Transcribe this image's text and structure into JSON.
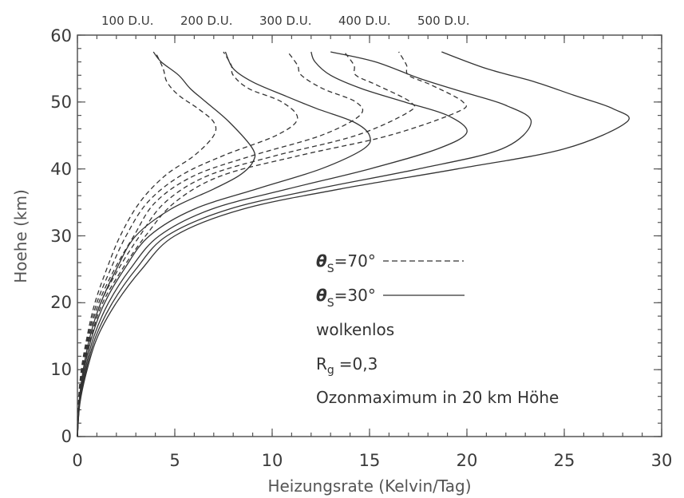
{
  "chart_data": {
    "type": "line",
    "title": "",
    "xlabel": "Heizungsrate (Kelvin/Tag)",
    "ylabel": "Hoehe (km)",
    "xlim": [
      0,
      30
    ],
    "ylim": [
      0,
      60
    ],
    "x_ticks": [
      "0",
      "5",
      "10",
      "15",
      "20",
      "25",
      "30"
    ],
    "y_ticks": [
      "0",
      "10",
      "20",
      "30",
      "40",
      "50",
      "60"
    ],
    "grid": false,
    "top_labels": [
      "100 D.U.",
      "200 D.U.",
      "300 D.U.",
      "400 D.U.",
      "500 D.U."
    ],
    "annotations": {
      "theta70_symbol": "θ",
      "theta70_sub": "S",
      "theta70_text": "=70°",
      "theta30_symbol": "θ",
      "theta30_sub": "S",
      "theta30_text": "=30°",
      "cloud": "wolkenlos",
      "rg_main": "R",
      "rg_sub": "g",
      "rg_value": "=0,3",
      "ozone": "Ozonmaximum in 20 km Höhe"
    },
    "series": [
      {
        "group": "θS=70°",
        "style": "dashed",
        "points": [
          [
            0,
            0
          ],
          [
            0.05,
            5
          ],
          [
            0.2,
            10
          ],
          [
            0.5,
            15
          ],
          [
            0.9,
            20
          ],
          [
            1.5,
            25
          ],
          [
            2.2,
            30
          ],
          [
            3.2,
            35
          ],
          [
            4.5,
            39
          ],
          [
            6.0,
            42
          ],
          [
            7.0,
            45
          ],
          [
            7.0,
            47
          ],
          [
            6.2,
            49
          ],
          [
            5.2,
            51
          ],
          [
            4.6,
            53
          ],
          [
            4.4,
            55
          ],
          [
            4.0,
            57.5
          ]
        ]
      },
      {
        "group": "θS=70°",
        "style": "dashed",
        "points": [
          [
            0,
            0
          ],
          [
            0.06,
            5
          ],
          [
            0.24,
            10
          ],
          [
            0.55,
            15
          ],
          [
            1.0,
            20
          ],
          [
            1.7,
            25
          ],
          [
            2.5,
            30
          ],
          [
            3.6,
            35
          ],
          [
            5.3,
            39
          ],
          [
            7.5,
            42
          ],
          [
            10.2,
            45
          ],
          [
            11.3,
            47.5
          ],
          [
            10.5,
            50
          ],
          [
            8.8,
            52
          ],
          [
            8.0,
            54
          ],
          [
            7.9,
            55.5
          ],
          [
            7.5,
            57.5
          ]
        ]
      },
      {
        "group": "θS=70°",
        "style": "dashed",
        "points": [
          [
            0,
            0
          ],
          [
            0.07,
            5
          ],
          [
            0.27,
            10
          ],
          [
            0.6,
            15
          ],
          [
            1.1,
            20
          ],
          [
            1.9,
            25
          ],
          [
            2.9,
            30
          ],
          [
            4.0,
            35
          ],
          [
            6.0,
            39
          ],
          [
            9.0,
            42
          ],
          [
            12.5,
            45
          ],
          [
            14.5,
            48
          ],
          [
            14.3,
            50
          ],
          [
            12.6,
            52
          ],
          [
            11.5,
            54
          ],
          [
            11.3,
            55.5
          ],
          [
            10.8,
            57.5
          ]
        ]
      },
      {
        "group": "θS=70°",
        "style": "dashed",
        "points": [
          [
            0,
            0
          ],
          [
            0.08,
            5
          ],
          [
            0.3,
            10
          ],
          [
            0.66,
            15
          ],
          [
            1.2,
            20
          ],
          [
            2.1,
            25
          ],
          [
            3.2,
            30
          ],
          [
            4.5,
            35
          ],
          [
            6.7,
            39
          ],
          [
            10.2,
            42
          ],
          [
            14.3,
            45
          ],
          [
            17.0,
            48.5
          ],
          [
            17.1,
            50
          ],
          [
            15.4,
            52.5
          ],
          [
            14.3,
            54
          ],
          [
            14.2,
            55.5
          ],
          [
            13.7,
            57.5
          ]
        ]
      },
      {
        "group": "θS=70°",
        "style": "dashed",
        "points": [
          [
            0,
            0
          ],
          [
            0.09,
            5
          ],
          [
            0.33,
            10
          ],
          [
            0.72,
            15
          ],
          [
            1.3,
            20
          ],
          [
            2.3,
            25
          ],
          [
            3.5,
            30
          ],
          [
            5.0,
            35
          ],
          [
            7.4,
            39
          ],
          [
            11.4,
            42
          ],
          [
            16.0,
            45
          ],
          [
            19.5,
            48.5
          ],
          [
            19.8,
            50
          ],
          [
            18.2,
            52.5
          ],
          [
            17.0,
            54
          ],
          [
            16.9,
            55.5
          ],
          [
            16.5,
            57.5
          ]
        ]
      },
      {
        "group": "θS=30°",
        "style": "solid",
        "points": [
          [
            0,
            0
          ],
          [
            0.08,
            5
          ],
          [
            0.3,
            10
          ],
          [
            0.65,
            15
          ],
          [
            1.2,
            20
          ],
          [
            2.0,
            25
          ],
          [
            3.0,
            30
          ],
          [
            4.8,
            34
          ],
          [
            7.0,
            37
          ],
          [
            8.3,
            39
          ],
          [
            9.0,
            41
          ],
          [
            9.0,
            43
          ],
          [
            7.8,
            47
          ],
          [
            6.6,
            50
          ],
          [
            5.8,
            52
          ],
          [
            5.2,
            54
          ],
          [
            4.3,
            56
          ],
          [
            3.9,
            57.5
          ]
        ]
      },
      {
        "group": "θS=30°",
        "style": "solid",
        "points": [
          [
            0,
            0
          ],
          [
            0.1,
            5
          ],
          [
            0.35,
            10
          ],
          [
            0.75,
            15
          ],
          [
            1.4,
            20
          ],
          [
            2.4,
            25
          ],
          [
            3.7,
            30
          ],
          [
            6.0,
            34
          ],
          [
            9.2,
            37
          ],
          [
            12.5,
            40
          ],
          [
            14.7,
            43
          ],
          [
            15.0,
            45
          ],
          [
            14.2,
            47
          ],
          [
            12.3,
            49
          ],
          [
            10.6,
            51
          ],
          [
            9.0,
            53
          ],
          [
            8.0,
            55
          ],
          [
            7.6,
            57.5
          ]
        ]
      },
      {
        "group": "θS=30°",
        "style": "solid",
        "points": [
          [
            0,
            0
          ],
          [
            0.11,
            5
          ],
          [
            0.4,
            10
          ],
          [
            0.85,
            15
          ],
          [
            1.6,
            20
          ],
          [
            2.7,
            25
          ],
          [
            4.2,
            30
          ],
          [
            6.9,
            34
          ],
          [
            10.8,
            37
          ],
          [
            15.0,
            40
          ],
          [
            18.5,
            43
          ],
          [
            20.0,
            45.5
          ],
          [
            19.0,
            48
          ],
          [
            16.8,
            50
          ],
          [
            14.6,
            52
          ],
          [
            13.0,
            54
          ],
          [
            12.2,
            56
          ],
          [
            12.0,
            57.5
          ]
        ]
      },
      {
        "group": "θS=30°",
        "style": "solid",
        "points": [
          [
            0,
            0
          ],
          [
            0.12,
            5
          ],
          [
            0.45,
            10
          ],
          [
            0.95,
            15
          ],
          [
            1.8,
            20
          ],
          [
            3.0,
            25
          ],
          [
            4.6,
            30
          ],
          [
            7.8,
            34
          ],
          [
            12.3,
            37
          ],
          [
            17.5,
            40
          ],
          [
            21.8,
            43
          ],
          [
            23.3,
            47
          ],
          [
            22.0,
            49.5
          ],
          [
            19.8,
            51.5
          ],
          [
            17.6,
            53.5
          ],
          [
            15.3,
            56
          ],
          [
            13.0,
            57.5
          ]
        ]
      },
      {
        "group": "θS=30°",
        "style": "solid",
        "points": [
          [
            0,
            0
          ],
          [
            0.13,
            5
          ],
          [
            0.5,
            10
          ],
          [
            1.05,
            15
          ],
          [
            2.0,
            20
          ],
          [
            3.3,
            25
          ],
          [
            5.0,
            30
          ],
          [
            8.5,
            34
          ],
          [
            13.5,
            37
          ],
          [
            19.5,
            40
          ],
          [
            25.0,
            43
          ],
          [
            28.2,
            47
          ],
          [
            27.5,
            49
          ],
          [
            25.5,
            51
          ],
          [
            23.5,
            53
          ],
          [
            21.0,
            55
          ],
          [
            18.7,
            57.5
          ]
        ]
      }
    ]
  }
}
